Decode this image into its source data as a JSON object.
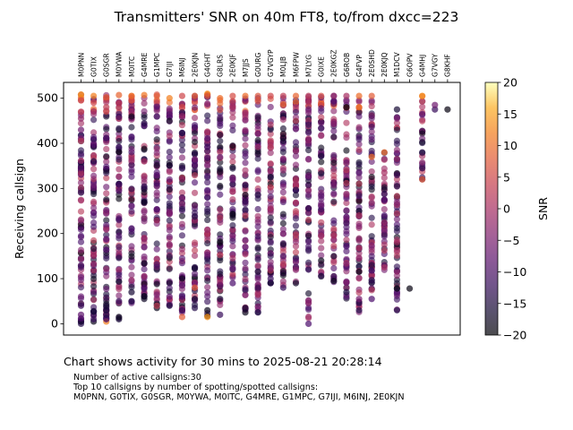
{
  "chart_data": {
    "type": "scatter",
    "title": "Transmitters' SNR on 40m FT8, to/from dxcc=223",
    "xlabel": "",
    "ylabel": "Receiving callsign",
    "colorbar_label": "SNR",
    "colormap": "inferno",
    "clim": [
      -20,
      20
    ],
    "colorbar_ticks": [
      -20,
      -15,
      -10,
      -5,
      0,
      5,
      10,
      15,
      20
    ],
    "ylim": [
      -25,
      535
    ],
    "y_ticks": [
      0,
      100,
      200,
      300,
      400,
      500
    ],
    "categories": [
      "M0PNN",
      "G0TIX",
      "G0SGR",
      "M0YWA",
      "M0ITC",
      "G4MRE",
      "G1MPC",
      "G7IJI",
      "M6INJ",
      "2E0KJN",
      "G4GHT",
      "G8LRS",
      "2E0KJF",
      "M7JJS",
      "G0URG",
      "G7VGYP",
      "M0LJB",
      "M6FPW",
      "M7LYG",
      "G0IXE",
      "2E0KGZ",
      "G6ROB",
      "G4FVP",
      "2E0SHD",
      "2E0KJQ",
      "M1DCV",
      "G6OPV",
      "G4MHJ",
      "G7VGY",
      "G8KHF"
    ],
    "columns": [
      {
        "ymin": 0,
        "ymax": 510,
        "points": [
          [
            0,
            -14
          ],
          [
            5,
            -16
          ],
          [
            12,
            -10
          ],
          [
            20,
            -8
          ],
          [
            40,
            -12
          ],
          [
            501,
            10
          ],
          [
            508,
            14
          ],
          [
            495,
            6
          ],
          [
            470,
            3
          ],
          [
            455,
            -2
          ],
          [
            430,
            -6
          ]
        ]
      },
      {
        "ymin": 5,
        "ymax": 510,
        "points": [
          [
            5,
            -18
          ],
          [
            10,
            -12
          ],
          [
            20,
            -13
          ],
          [
            27,
            -16
          ],
          [
            28,
            -15
          ],
          [
            505,
            12
          ],
          [
            490,
            5
          ],
          [
            470,
            0
          ]
        ]
      },
      {
        "ymin": 5,
        "ymax": 510,
        "points": [
          [
            5,
            12
          ],
          [
            10,
            -10
          ],
          [
            20,
            -14
          ],
          [
            30,
            -15
          ],
          [
            40,
            -16
          ],
          [
            502,
            8
          ],
          [
            480,
            3
          ]
        ]
      },
      {
        "ymin": 10,
        "ymax": 510,
        "points": [
          [
            10,
            -16
          ],
          [
            15,
            -18
          ],
          [
            50,
            -12
          ],
          [
            507,
            9
          ],
          [
            488,
            2
          ]
        ]
      },
      {
        "ymin": 45,
        "ymax": 510,
        "points": [
          [
            50,
            -14
          ],
          [
            70,
            -16
          ],
          [
            495,
            6
          ],
          [
            505,
            10
          ]
        ]
      },
      {
        "ymin": 55,
        "ymax": 510,
        "points": [
          [
            55,
            -17
          ],
          [
            80,
            -10
          ],
          [
            507,
            11
          ]
        ]
      },
      {
        "ymin": 35,
        "ymax": 510,
        "points": [
          [
            35,
            -18
          ],
          [
            40,
            3
          ],
          [
            505,
            8
          ]
        ]
      },
      {
        "ymin": 40,
        "ymax": 505,
        "points": [
          [
            40,
            -15
          ],
          [
            60,
            -8
          ],
          [
            500,
            12
          ]
        ]
      },
      {
        "ymin": 15,
        "ymax": 505,
        "points": [
          [
            15,
            8
          ],
          [
            30,
            -12
          ],
          [
            60,
            -10
          ],
          [
            505,
            5
          ]
        ]
      },
      {
        "ymin": 35,
        "ymax": 505,
        "points": [
          [
            35,
            -14
          ],
          [
            55,
            -16
          ],
          [
            80,
            8
          ],
          [
            505,
            9
          ]
        ]
      },
      {
        "ymin": 15,
        "ymax": 510,
        "points": [
          [
            15,
            14
          ],
          [
            30,
            -18
          ],
          [
            510,
            13
          ],
          [
            505,
            7
          ]
        ]
      },
      {
        "ymin": 20,
        "ymax": 505,
        "points": [
          [
            20,
            -12
          ],
          [
            55,
            -16
          ],
          [
            500,
            10
          ]
        ]
      },
      {
        "ymin": 90,
        "ymax": 505,
        "points": [
          [
            90,
            -10
          ],
          [
            505,
            6
          ]
        ]
      },
      {
        "ymin": 25,
        "ymax": 505,
        "points": [
          [
            25,
            -18
          ],
          [
            35,
            -16
          ],
          [
            505,
            10
          ]
        ]
      },
      {
        "ymin": 25,
        "ymax": 505,
        "points": [
          [
            25,
            -14
          ],
          [
            80,
            -12
          ],
          [
            505,
            7
          ]
        ]
      },
      {
        "ymin": 90,
        "ymax": 505,
        "points": [
          [
            90,
            -15
          ],
          [
            100,
            -12
          ],
          [
            505,
            5
          ]
        ]
      },
      {
        "ymin": 80,
        "ymax": 505,
        "points": [
          [
            80,
            -12
          ],
          [
            505,
            3
          ]
        ]
      },
      {
        "ymin": 90,
        "ymax": 505,
        "points": [
          [
            90,
            -17
          ],
          [
            505,
            9
          ]
        ]
      },
      {
        "ymin": 0,
        "ymax": 505,
        "points": [
          [
            0,
            -10
          ],
          [
            120,
            -13
          ],
          [
            505,
            2
          ]
        ]
      },
      {
        "ymin": 100,
        "ymax": 505,
        "points": [
          [
            105,
            -16
          ],
          [
            140,
            -18
          ],
          [
            505,
            6
          ]
        ]
      },
      {
        "ymin": 90,
        "ymax": 505,
        "points": [
          [
            95,
            -18
          ],
          [
            150,
            -16
          ],
          [
            505,
            -2
          ]
        ]
      },
      {
        "ymin": 50,
        "ymax": 505,
        "points": [
          [
            70,
            -15
          ],
          [
            480,
            -20
          ],
          [
            505,
            0
          ]
        ]
      },
      {
        "ymin": 25,
        "ymax": 505,
        "points": [
          [
            30,
            -14
          ],
          [
            55,
            -5
          ],
          [
            115,
            -18
          ],
          [
            505,
            10
          ],
          [
            480,
            11
          ]
        ]
      },
      {
        "ymin": 50,
        "ymax": 505,
        "points": [
          [
            55,
            -10
          ],
          [
            505,
            8
          ],
          [
            370,
            10
          ]
        ]
      },
      {
        "ymin": 110,
        "ymax": 380,
        "points": [
          [
            125,
            0
          ],
          [
            240,
            -10
          ],
          [
            275,
            -8
          ],
          [
            380,
            10
          ],
          [
            335,
            0
          ]
        ]
      },
      {
        "ymin": 30,
        "ymax": 475,
        "points": [
          [
            30,
            -14
          ],
          [
            78,
            -18
          ],
          [
            475,
            -16
          ]
        ]
      },
      {
        "ymin": 78,
        "ymax": 78,
        "points": [
          [
            78,
            -19
          ]
        ]
      },
      {
        "ymin": 320,
        "ymax": 505,
        "points": [
          [
            320,
            8
          ],
          [
            380,
            -14
          ],
          [
            465,
            -8
          ],
          [
            505,
            14
          ]
        ]
      },
      {
        "ymin": 470,
        "ymax": 490,
        "points": [
          [
            475,
            -12
          ],
          [
            485,
            -6
          ]
        ]
      },
      {
        "ymin": 475,
        "ymax": 475,
        "points": [
          [
            475,
            -19
          ]
        ]
      }
    ]
  },
  "footer": {
    "caption": "Chart shows activity for 30 mins to 2025-08-21 20:28:14",
    "note_line1": "Number of active callsigns:30",
    "note_line2": "Top 10 callsigns by number of spotting/spotted callsigns:",
    "note_line3": "M0PNN, G0TIX, G0SGR, M0YWA, M0ITC, G4MRE, G1MPC, G7IJI, M6INJ, 2E0KJN"
  }
}
